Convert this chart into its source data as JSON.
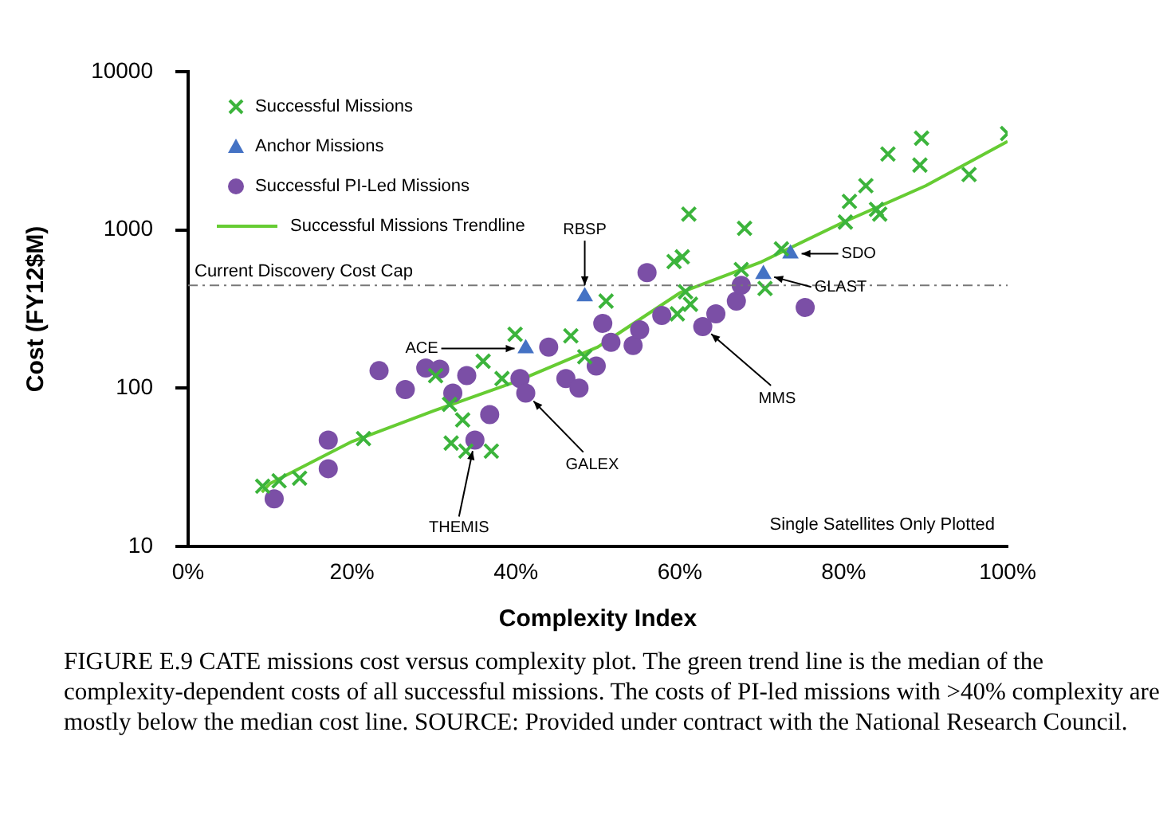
{
  "chart_data": {
    "type": "scatter",
    "xlabel": "Complexity Index",
    "ylabel": "Cost (FY12$M)",
    "log": "y",
    "xlim": [
      0,
      100
    ],
    "ylim": [
      10,
      10000
    ],
    "xticks": [
      {
        "value": 0,
        "label": "0%"
      },
      {
        "value": 20,
        "label": "20%"
      },
      {
        "value": 40,
        "label": "40%"
      },
      {
        "value": 60,
        "label": "60%"
      },
      {
        "value": 80,
        "label": "80%"
      },
      {
        "value": 100,
        "label": "100%"
      }
    ],
    "yticks": [
      10,
      100,
      1000,
      10000
    ],
    "grid": false,
    "legend": "top left",
    "series": [
      {
        "name": "Successful Missions",
        "color": "#3cb43c",
        "marker": "cross",
        "x": [
          9.1,
          11.1,
          13.6,
          21.4,
          32.1,
          33.5,
          31.9,
          30.2,
          33.9,
          37,
          36,
          38.3,
          39.9,
          46.7,
          48.4,
          51,
          59.3,
          61.1,
          60.7,
          61.3,
          59.7,
          67.9,
          80.7,
          82.7,
          80.2,
          84.4,
          72.4,
          67.5,
          70.4,
          60.3,
          100,
          89.5,
          85.4,
          89.3,
          95.3,
          84
        ],
        "values": [
          24,
          26,
          27,
          48,
          45,
          63,
          79,
          120,
          40,
          40,
          148,
          115,
          219,
          214,
          158,
          355,
          631,
          1259,
          407,
          339,
          295,
          1023,
          1514,
          1905,
          1122,
          1259,
          759,
          562,
          427,
          676,
          4070,
          3800,
          3020,
          2570,
          2240,
          1349
        ]
      },
      {
        "name": "Anchor Missions",
        "color": "#4472c4",
        "marker": "triangle",
        "x": [
          41.2,
          48.4,
          70.2,
          73.5
        ],
        "values": [
          178,
          380,
          525,
          708
        ]
      },
      {
        "name": "Successful PI-Led Missions",
        "color": "#7b4fa6",
        "marker": "circle",
        "x": [
          10.5,
          17.1,
          17.1,
          23.3,
          26.5,
          29,
          30.7,
          34,
          32.3,
          35,
          36.8,
          40.5,
          41.2,
          44,
          46.1,
          47.7,
          49.8,
          50.6,
          51.6,
          54.3,
          55.1,
          56,
          57.8,
          62.8,
          64.4,
          66.9,
          67.5,
          75.3
        ],
        "values": [
          20,
          31,
          47,
          129,
          98,
          134,
          132,
          120,
          93,
          47,
          68,
          115,
          93,
          182,
          115,
          100,
          138,
          257,
          195,
          186,
          234,
          537,
          288,
          245,
          295,
          355,
          447,
          324
        ]
      },
      {
        "name": "Successful Missions Trendline",
        "type": "line",
        "color": "#66cc33",
        "marker": "none",
        "x": [
          9,
          10,
          20,
          30,
          40,
          50,
          60,
          70,
          80,
          90,
          100
        ],
        "values": [
          22,
          25,
          46,
          72,
          110,
          182,
          400,
          630,
          1122,
          1900,
          3630
        ]
      }
    ],
    "ref_lines": [
      {
        "axis": "y",
        "value": 447,
        "label": "Current Discovery Cost Cap",
        "color": "#777777",
        "line_style": "dashdot"
      }
    ],
    "annotations": [
      {
        "text": "ACE",
        "x": 41.2,
        "y": 178
      },
      {
        "text": "RBSP",
        "x": 48.4,
        "y": 380
      },
      {
        "text": "SDO",
        "x": 73.5,
        "y": 708
      },
      {
        "text": "GLAST",
        "x": 70.2,
        "y": 525
      },
      {
        "text": "MMS",
        "x": 62.8,
        "y": 245
      },
      {
        "text": "GALEX",
        "x": 41.2,
        "y": 93
      },
      {
        "text": "THEMIS",
        "x": 35,
        "y": 47
      },
      "Single Satellites Only Plotted",
      "FIGURE E.9  CATE missions cost versus complexity plot.  The green trend line is the median of the complexity-dependent costs of all successful missions.  The costs of PI-led missions with >40% complexity are mostly below the median cost line. SOURCE: Provided under contract with the National Research Council."
    ]
  }
}
